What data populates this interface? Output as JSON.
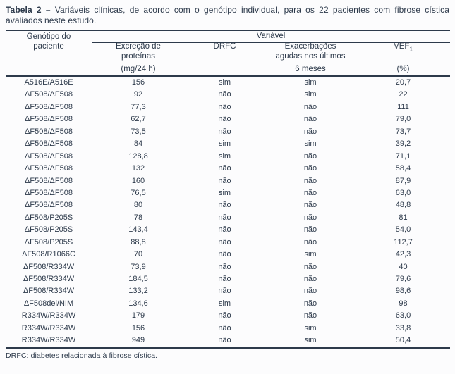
{
  "title": {
    "label": "Tabela 2",
    "separator": "–",
    "text": "Variáveis clínicas, de acordo com o genótipo individual, para os 22 pacientes com fibrose cística avaliados neste estudo."
  },
  "table": {
    "header": {
      "genotype_line1": "Genótipo do",
      "genotype_line2": "paciente",
      "variable_group": "Variável",
      "protein_line1": "Excreção de",
      "protein_line2": "proteínas",
      "protein_unit": "(mg/24 h)",
      "drfc": "DRFC",
      "exac_line1": "Exacerbações",
      "exac_line2": "agudas nos últimos",
      "exac_unit": "6 meses",
      "vef_text": "VEF",
      "vef_sub": "1",
      "vef_unit": "(%)"
    },
    "rows": [
      {
        "genotype": "A516E/A516E",
        "protein": "156",
        "drfc": "sim",
        "exac": "sim",
        "vef": "20,7"
      },
      {
        "genotype": "ΔF508/ΔF508",
        "protein": "92",
        "drfc": "não",
        "exac": "sim",
        "vef": "22"
      },
      {
        "genotype": "ΔF508/ΔF508",
        "protein": "77,3",
        "drfc": "não",
        "exac": "não",
        "vef": "111"
      },
      {
        "genotype": "ΔF508/ΔF508",
        "protein": "62,7",
        "drfc": "não",
        "exac": "não",
        "vef": "79,0"
      },
      {
        "genotype": "ΔF508/ΔF508",
        "protein": "73,5",
        "drfc": "não",
        "exac": "não",
        "vef": "73,7"
      },
      {
        "genotype": "ΔF508/ΔF508",
        "protein": "84",
        "drfc": "sim",
        "exac": "sim",
        "vef": "39,2"
      },
      {
        "genotype": "ΔF508/ΔF508",
        "protein": "128,8",
        "drfc": "sim",
        "exac": "não",
        "vef": "71,1"
      },
      {
        "genotype": "ΔF508/ΔF508",
        "protein": "132",
        "drfc": "não",
        "exac": "não",
        "vef": "58,4"
      },
      {
        "genotype": "ΔF508/ΔF508",
        "protein": "160",
        "drfc": "não",
        "exac": "não",
        "vef": "87,9"
      },
      {
        "genotype": "ΔF508/ΔF508",
        "protein": "76,5",
        "drfc": "sim",
        "exac": "não",
        "vef": "63,0"
      },
      {
        "genotype": "ΔF508/ΔF508",
        "protein": "80",
        "drfc": "não",
        "exac": "não",
        "vef": "48,8"
      },
      {
        "genotype": "ΔF508/P205S",
        "protein": "78",
        "drfc": "não",
        "exac": "não",
        "vef": "81"
      },
      {
        "genotype": "ΔF508/P205S",
        "protein": "143,4",
        "drfc": "não",
        "exac": "não",
        "vef": "54,0"
      },
      {
        "genotype": "ΔF508/P205S",
        "protein": "88,8",
        "drfc": "não",
        "exac": "não",
        "vef": "112,7"
      },
      {
        "genotype": "ΔF508/R1066C",
        "protein": "70",
        "drfc": "não",
        "exac": "sim",
        "vef": "42,3"
      },
      {
        "genotype": "ΔF508/R334W",
        "protein": "73,9",
        "drfc": "não",
        "exac": "não",
        "vef": "40"
      },
      {
        "genotype": "ΔF508/R334W",
        "protein": "184,5",
        "drfc": "não",
        "exac": "não",
        "vef": "79,6"
      },
      {
        "genotype": "ΔF508/R334W",
        "protein": "133,2",
        "drfc": "não",
        "exac": "não",
        "vef": "98,6"
      },
      {
        "genotype": "ΔF508del/NIM",
        "protein": "134,6",
        "drfc": "sim",
        "exac": "não",
        "vef": "98"
      },
      {
        "genotype": "R334W/R334W",
        "protein": "179",
        "drfc": "não",
        "exac": "não",
        "vef": "63,0"
      },
      {
        "genotype": "R334W/R334W",
        "protein": "156",
        "drfc": "não",
        "exac": "sim",
        "vef": "33,8"
      },
      {
        "genotype": "R334W/R334W",
        "protein": "949",
        "drfc": "não",
        "exac": "sim",
        "vef": "50,4"
      }
    ]
  },
  "footnote": "DRFC: diabetes relacionada à fibrose cística.",
  "colors": {
    "ink": "#2d3a4b",
    "background": "#fcfcfd"
  }
}
